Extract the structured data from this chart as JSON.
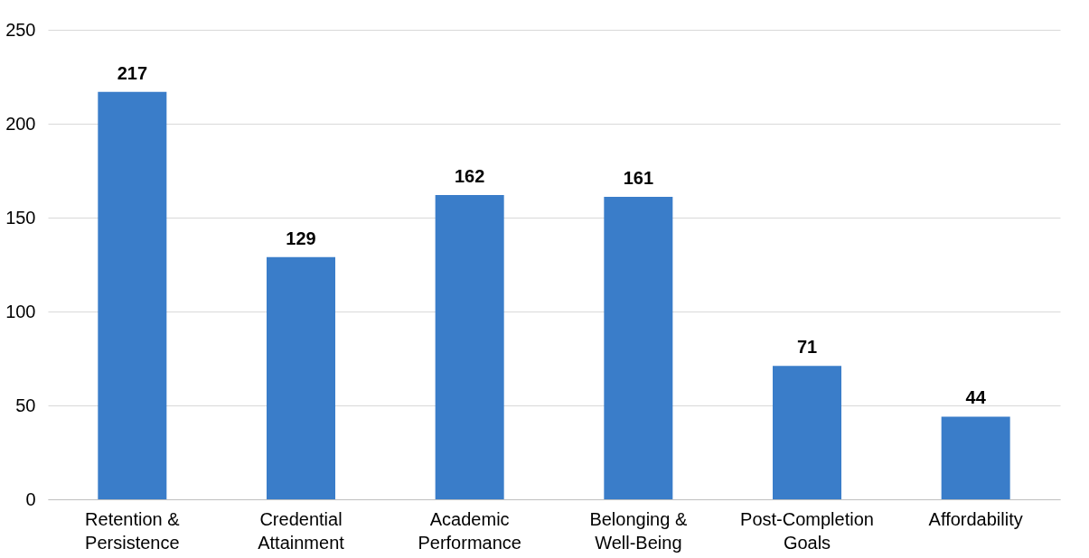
{
  "chart_data": {
    "type": "bar",
    "categories": [
      "Retention &\nPersistence",
      "Credential\nAttainment",
      "Academic\nPerformance",
      "Belonging &\nWell-Being",
      "Post-Completion\nGoals",
      "Affordability"
    ],
    "values": [
      217,
      129,
      162,
      161,
      71,
      44
    ],
    "color": "#3a7dc9",
    "ylim": [
      0,
      250
    ],
    "yticks": [
      0,
      50,
      100,
      150,
      200,
      250
    ],
    "grid": "y",
    "data_labels": true
  }
}
